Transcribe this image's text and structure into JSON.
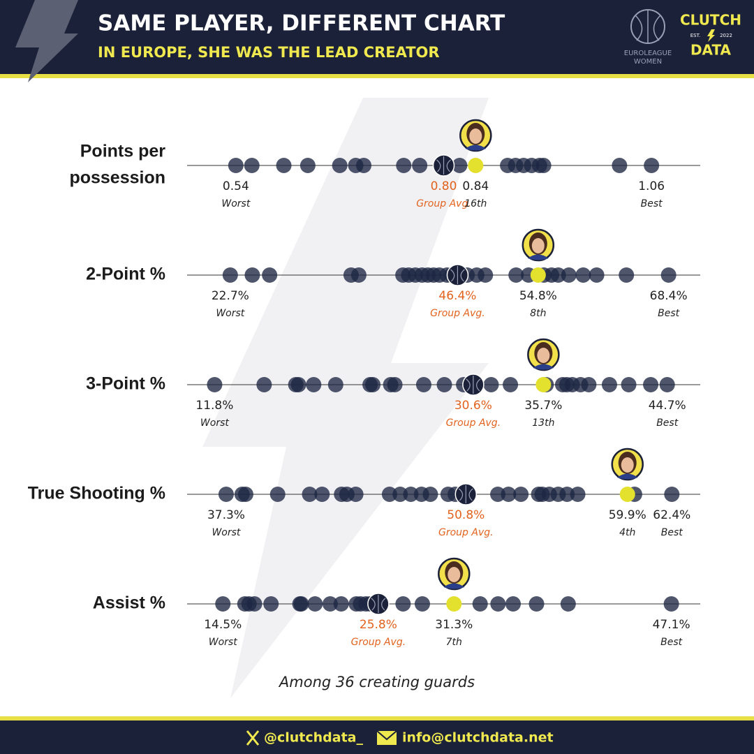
{
  "header": {
    "title": "SAME PLAYER, DIFFERENT CHART",
    "subtitle": "IN EUROPE, SHE WAS THE LEAD CREATOR",
    "league_logo": [
      "EUROLEAGUE",
      "WOMEN"
    ],
    "brand": {
      "top": "CLUTCH",
      "est": "EST.",
      "year": "2022",
      "bottom": "DATA"
    }
  },
  "rows": [
    {
      "label": [
        "Points per",
        "possession"
      ],
      "xlim": [
        0.479,
        1.121
      ],
      "others": [
        0.56,
        0.6,
        0.63,
        0.67,
        0.69,
        0.7,
        0.75,
        0.77,
        0.82,
        0.88,
        0.89,
        0.9,
        0.91,
        0.92,
        0.925,
        1.02
      ],
      "worst": {
        "value": 0.54,
        "label": "0.54",
        "caption": "Worst"
      },
      "best": {
        "value": 1.06,
        "label": "1.06",
        "caption": "Best"
      },
      "average": {
        "value": 0.8,
        "label": "0.80",
        "caption": "Group Avg."
      },
      "player": {
        "value": 0.84,
        "label": "0.84",
        "caption": "16th"
      }
    },
    {
      "label": [
        "2-Point %"
      ],
      "xlim": [
        18.2,
        71.7
      ],
      "others": [
        25.0,
        26.8,
        35.3,
        36.1,
        40.7,
        41.3,
        42.0,
        42.7,
        43.3,
        43.9,
        44.5,
        45.3,
        45.8,
        47.4,
        48.4,
        49.3,
        52.5,
        53.8,
        55.4,
        56.2,
        56.9,
        58.0,
        59.5,
        60.9,
        64.0
      ],
      "worst": {
        "value": 22.7,
        "label": "22.7%",
        "caption": "Worst"
      },
      "best": {
        "value": 68.4,
        "label": "68.4%",
        "caption": "Best"
      },
      "average": {
        "value": 46.4,
        "label": "46.4%",
        "caption": "Group Avg."
      },
      "player": {
        "value": 54.8,
        "label": "54.8%",
        "caption": "8th"
      }
    },
    {
      "label": [
        "3-Point %"
      ],
      "xlim": [
        9.8,
        47.1
      ],
      "others": [
        15.4,
        17.7,
        17.9,
        19.0,
        20.6,
        23.1,
        23.3,
        24.6,
        24.9,
        27.0,
        28.5,
        29.9,
        31.9,
        33.3,
        35.9,
        37.1,
        37.4,
        37.8,
        38.4,
        39.0,
        40.5,
        41.9,
        43.5
      ],
      "worst": {
        "value": 11.8,
        "label": "11.8%",
        "caption": "Worst"
      },
      "best": {
        "value": 44.7,
        "label": "44.7%",
        "caption": "Best"
      },
      "average": {
        "value": 30.6,
        "label": "30.6%",
        "caption": "Group Avg."
      },
      "player": {
        "value": 35.7,
        "label": "35.7%",
        "caption": "13th"
      }
    },
    {
      "label": [
        "True Shooting %"
      ],
      "xlim": [
        35.1,
        64.0
      ],
      "others": [
        38.2,
        38.4,
        40.2,
        42.0,
        42.7,
        43.8,
        44.1,
        44.6,
        46.5,
        47.1,
        47.7,
        48.3,
        48.8,
        49.8,
        50.2,
        52.6,
        53.2,
        53.9,
        54.9,
        55.1,
        55.5,
        56.0,
        56.5,
        57.1,
        60.3
      ],
      "worst": {
        "value": 37.3,
        "label": "37.3%",
        "caption": "Worst"
      },
      "best": {
        "value": 62.4,
        "label": "62.4%",
        "caption": "Best"
      },
      "average": {
        "value": 50.8,
        "label": "50.8%",
        "caption": "Group Avg."
      },
      "player": {
        "value": 59.9,
        "label": "59.9%",
        "caption": "4th"
      }
    },
    {
      "label": [
        "Assist %"
      ],
      "xlim": [
        11.9,
        49.2
      ],
      "others": [
        16.1,
        16.4,
        16.8,
        18.0,
        20.1,
        20.2,
        21.2,
        22.3,
        23.1,
        24.2,
        24.5,
        24.9,
        25.2,
        27.6,
        29.0,
        33.2,
        34.5,
        35.6,
        37.3,
        39.6
      ],
      "worst": {
        "value": 14.5,
        "label": "14.5%",
        "caption": "Worst"
      },
      "best": {
        "value": 47.1,
        "label": "47.1%",
        "caption": "Best"
      },
      "average": {
        "value": 25.8,
        "label": "25.8%",
        "caption": "Group Avg."
      },
      "player": {
        "value": 31.3,
        "label": "31.3%",
        "caption": "7th"
      }
    }
  ],
  "note": "Among 36 creating guards",
  "footer": {
    "twitter": "@clutchdata_",
    "email": "info@clutchdata.net"
  }
}
